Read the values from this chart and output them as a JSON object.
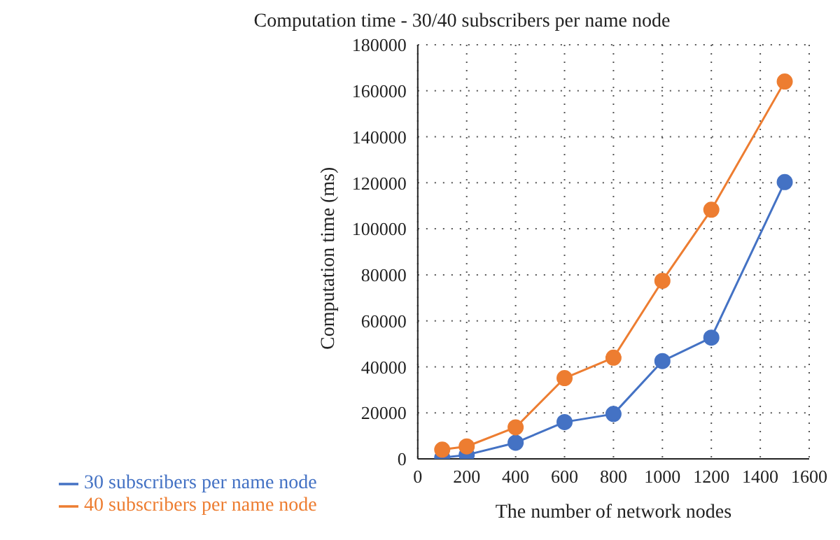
{
  "chart_data": {
    "type": "line",
    "title": "Computation time - 30/40 subscribers per name node",
    "xlabel": "The number of network nodes",
    "ylabel": "Computation time (ms)",
    "x": [
      100,
      200,
      400,
      600,
      800,
      1000,
      1200,
      1500
    ],
    "series": [
      {
        "name": "30 subscribers per name node",
        "color": "#4472c4",
        "values": [
          500,
          1700,
          7000,
          16000,
          19500,
          42500,
          52700,
          120300
        ]
      },
      {
        "name": "40 subscribers per name node",
        "color": "#ed7d31",
        "values": [
          4000,
          5400,
          13700,
          35100,
          44000,
          77400,
          108300,
          164000
        ]
      }
    ],
    "xlim": [
      0,
      1600
    ],
    "xticks": [
      0,
      200,
      400,
      600,
      800,
      1000,
      1200,
      1400,
      1600
    ],
    "ylim": [
      0,
      180000
    ],
    "yticks": [
      0,
      20000,
      40000,
      60000,
      80000,
      100000,
      120000,
      140000,
      160000,
      180000
    ],
    "grid": true,
    "legend": "bottom",
    "marker": "circle",
    "line_style": "solid"
  }
}
